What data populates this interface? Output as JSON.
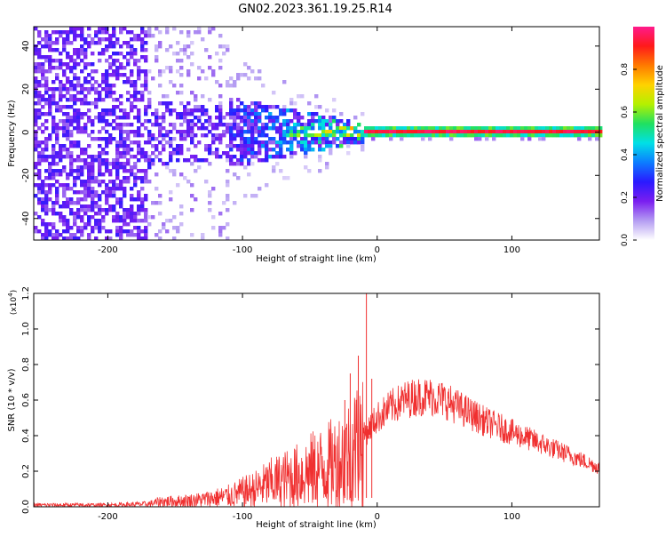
{
  "title": "GN02.2023.361.19.25.R14",
  "chart_data": [
    {
      "type": "heatmap",
      "name": "spectrogram",
      "xlabel": "Height of straight line (km)",
      "ylabel": "Frequency (Hz)",
      "xlim": [
        -255,
        165
      ],
      "ylim": [
        -50,
        49
      ],
      "xticks": [
        -200,
        -100,
        0,
        100
      ],
      "xtick_labels": [
        "-200",
        "-100",
        "0",
        "100"
      ],
      "yticks": [
        -40,
        -20,
        0,
        20,
        40
      ],
      "ytick_labels": [
        "-40",
        "-20",
        "0",
        "20",
        "40"
      ],
      "colorbar": {
        "label": "Normalized spectral amplitude",
        "range": [
          0,
          1
        ],
        "ticks": [
          0.0,
          0.2,
          0.4,
          0.6,
          0.8
        ],
        "tick_labels": [
          "0.0",
          "0.2",
          "0.4",
          "0.6",
          "0.8"
        ],
        "colormap": [
          "#ffffff",
          "#b49cf2",
          "#7a1ef0",
          "#2a1aff",
          "#0c7dff",
          "#00e0e6",
          "#20e060",
          "#b4f000",
          "#ffd200",
          "#ff7a00",
          "#ff1a1a",
          "#ff1a8c"
        ]
      },
      "description_points": {
        "noise_region_km": [
          -255,
          -160
        ],
        "converging_region_km": [
          -170,
          -10
        ],
        "steady_line_km": [
          -10,
          165
        ],
        "line_frequency_hz": 0
      }
    },
    {
      "type": "line",
      "name": "snr",
      "xlabel": "Height of straight line (km)",
      "ylabel": "SNR (10 * v/v)",
      "scale_label": "(x10",
      "scale_exp": "4",
      "scale_close": ")",
      "xlim": [
        -255,
        165
      ],
      "ylim": [
        0,
        1.2
      ],
      "xticks": [
        -200,
        -100,
        0,
        100
      ],
      "xtick_labels": [
        "-200",
        "-100",
        "0",
        "100"
      ],
      "yticks": [
        0.0,
        0.2,
        0.4,
        0.6,
        0.8,
        1.0,
        1.2
      ],
      "ytick_labels": [
        "0.0",
        "0.2",
        "0.4",
        "0.6",
        "0.8",
        "1.0",
        "1.2"
      ],
      "color": "#f03030",
      "series": [
        {
          "name": "SNR envelope",
          "x": [
            -255,
            -200,
            -170,
            -160,
            -150,
            -130,
            -110,
            -100,
            -90,
            -80,
            -70,
            -60,
            -50,
            -40,
            -30,
            -20,
            -15,
            -10,
            -5,
            0,
            10,
            20,
            30,
            40,
            50,
            60,
            80,
            100,
            120,
            140,
            165
          ],
          "y": [
            0.01,
            0.01,
            0.015,
            0.03,
            0.03,
            0.04,
            0.06,
            0.08,
            0.1,
            0.13,
            0.15,
            0.17,
            0.2,
            0.22,
            0.25,
            0.3,
            0.35,
            0.4,
            0.45,
            0.5,
            0.56,
            0.6,
            0.62,
            0.62,
            0.6,
            0.56,
            0.48,
            0.42,
            0.36,
            0.3,
            0.22
          ]
        }
      ],
      "spikes": [
        {
          "x": -8,
          "y": 1.2
        },
        {
          "x": -14,
          "y": 0.85
        },
        {
          "x": -20,
          "y": 0.75
        },
        {
          "x": -24,
          "y": 0.6
        },
        {
          "x": -4,
          "y": 0.72
        }
      ]
    }
  ]
}
